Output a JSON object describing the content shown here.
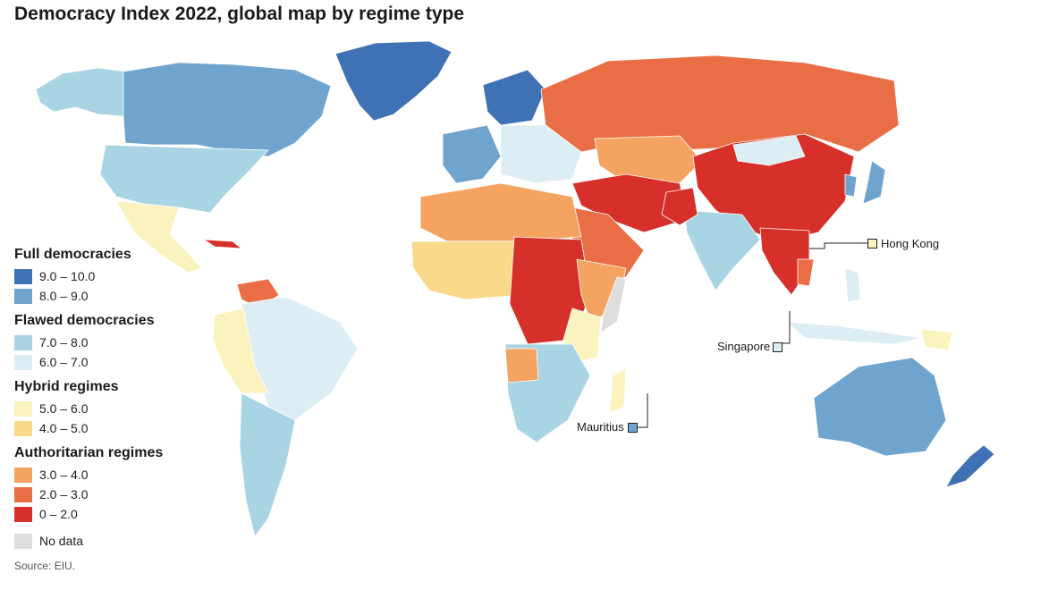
{
  "title": "Democracy Index 2022, global map by regime type",
  "source": "Source: EIU.",
  "colors": {
    "full_9_10": "#3f71b5",
    "full_8_9": "#6fa4cf",
    "flawed_7_8": "#a8d4e4",
    "flawed_6_7": "#dcedf4",
    "hybrid_5_6": "#fbf3bd",
    "hybrid_4_5": "#fbd98a",
    "auth_3_4": "#f4a460",
    "auth_2_3": "#e96d45",
    "auth_0_2": "#d7302a",
    "no_data": "#dddddd"
  },
  "legend": [
    {
      "title": "Full democracies",
      "items": [
        {
          "label": "9.0 – 10.0",
          "color": "#3f71b5"
        },
        {
          "label": "8.0 – 9.0",
          "color": "#6fa4cf"
        }
      ]
    },
    {
      "title": "Flawed democracies",
      "items": [
        {
          "label": "7.0 – 8.0",
          "color": "#a8d4e4"
        },
        {
          "label": "6.0 – 7.0",
          "color": "#dcedf4"
        }
      ]
    },
    {
      "title": "Hybrid regimes",
      "items": [
        {
          "label": "5.0 – 6.0",
          "color": "#fbf3bd"
        },
        {
          "label": "4.0 – 5.0",
          "color": "#fbd98a"
        }
      ]
    },
    {
      "title": "Authoritarian regimes",
      "items": [
        {
          "label": "3.0 – 4.0",
          "color": "#f4a460"
        },
        {
          "label": "2.0 – 3.0",
          "color": "#e96d45"
        },
        {
          "label": "0 – 2.0",
          "color": "#d7302a"
        }
      ]
    },
    {
      "title": "",
      "items": [
        {
          "label": "No data",
          "color": "#dddddd"
        }
      ]
    }
  ],
  "callouts": {
    "hong_kong": {
      "label": "Hong Kong",
      "color": "#fbf3bd"
    },
    "singapore": {
      "label": "Singapore",
      "color": "#dcedf4"
    },
    "mauritius": {
      "label": "Mauritius",
      "color": "#6fa4cf"
    }
  }
}
